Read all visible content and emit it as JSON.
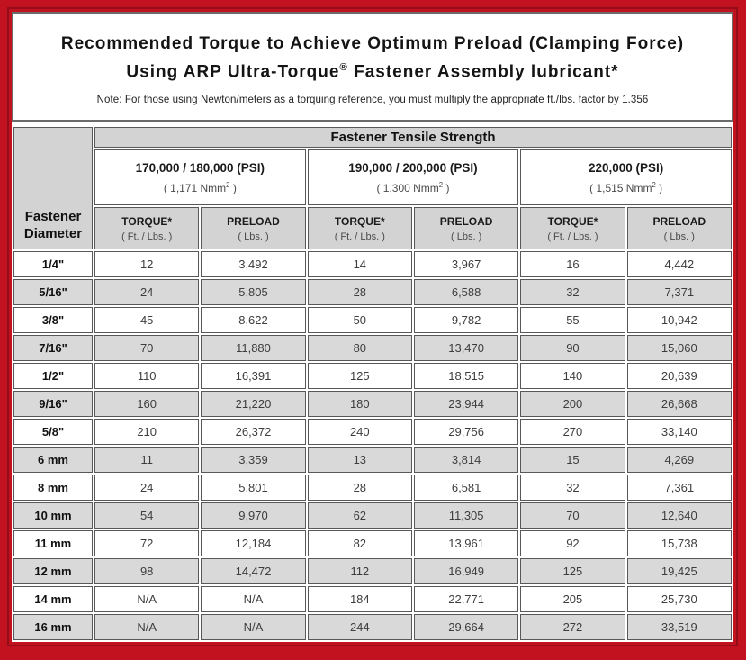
{
  "colors": {
    "frame_red": "#c2121f",
    "inner_red_line": "#930e19",
    "header_gray": "#d3d3d3",
    "row_shade_gray": "#d9d9d9",
    "cell_border": "#58585a",
    "title_text": "#141414"
  },
  "header": {
    "title_line1": "Recommended Torque to Achieve Optimum Preload (Clamping Force)",
    "title_line2_pre": "Using ARP Ultra-Torque",
    "title_line2_sup": "®",
    "title_line2_post": " Fastener Assembly lubricant*",
    "note": "Note: For those using Newton/meters as a torquing reference, you must multiply the appropriate ft./lbs. factor by 1.356"
  },
  "table": {
    "corner_header": "Fastener Diameter",
    "main_header": "Fastener Tensile Strength",
    "groups": [
      {
        "psi": "170,000 / 180,000 (PSI)",
        "nmm_base": "( 1,171 Nmm",
        "nmm_sup": "2",
        "nmm_close": " )"
      },
      {
        "psi": "190,000 / 200,000 (PSI)",
        "nmm_base": "( 1,300 Nmm",
        "nmm_sup": "2",
        "nmm_close": " )"
      },
      {
        "psi": "220,000 (PSI)",
        "nmm_base": "( 1,515 Nmm",
        "nmm_sup": "2",
        "nmm_close": " )"
      }
    ],
    "col_headers": [
      {
        "label": "TORQUE*",
        "unit": "( Ft. / Lbs. )"
      },
      {
        "label": "PRELOAD",
        "unit": "( Lbs. )"
      },
      {
        "label": "TORQUE*",
        "unit": "( Ft. / Lbs. )"
      },
      {
        "label": "PRELOAD",
        "unit": "( Lbs. )"
      },
      {
        "label": "TORQUE*",
        "unit": "( Ft. / Lbs. )"
      },
      {
        "label": "PRELOAD",
        "unit": "( Lbs. )"
      }
    ],
    "rows": [
      {
        "d": "1/4\"",
        "v": [
          "12",
          "3,492",
          "14",
          "3,967",
          "16",
          "4,442"
        ]
      },
      {
        "d": "5/16\"",
        "v": [
          "24",
          "5,805",
          "28",
          "6,588",
          "32",
          "7,371"
        ]
      },
      {
        "d": "3/8\"",
        "v": [
          "45",
          "8,622",
          "50",
          "9,782",
          "55",
          "10,942"
        ]
      },
      {
        "d": "7/16\"",
        "v": [
          "70",
          "11,880",
          "80",
          "13,470",
          "90",
          "15,060"
        ]
      },
      {
        "d": "1/2\"",
        "v": [
          "110",
          "16,391",
          "125",
          "18,515",
          "140",
          "20,639"
        ]
      },
      {
        "d": "9/16\"",
        "v": [
          "160",
          "21,220",
          "180",
          "23,944",
          "200",
          "26,668"
        ]
      },
      {
        "d": "5/8\"",
        "v": [
          "210",
          "26,372",
          "240",
          "29,756",
          "270",
          "33,140"
        ]
      },
      {
        "d": "6 mm",
        "v": [
          "11",
          "3,359",
          "13",
          "3,814",
          "15",
          "4,269"
        ]
      },
      {
        "d": "8 mm",
        "v": [
          "24",
          "5,801",
          "28",
          "6,581",
          "32",
          "7,361"
        ]
      },
      {
        "d": "10 mm",
        "v": [
          "54",
          "9,970",
          "62",
          "11,305",
          "70",
          "12,640"
        ]
      },
      {
        "d": "11 mm",
        "v": [
          "72",
          "12,184",
          "82",
          "13,961",
          "92",
          "15,738"
        ]
      },
      {
        "d": "12 mm",
        "v": [
          "98",
          "14,472",
          "112",
          "16,949",
          "125",
          "19,425"
        ]
      },
      {
        "d": "14 mm",
        "v": [
          "N/A",
          "N/A",
          "184",
          "22,771",
          "205",
          "25,730"
        ]
      },
      {
        "d": "16 mm",
        "v": [
          "N/A",
          "N/A",
          "244",
          "29,664",
          "272",
          "33,519"
        ]
      }
    ]
  }
}
